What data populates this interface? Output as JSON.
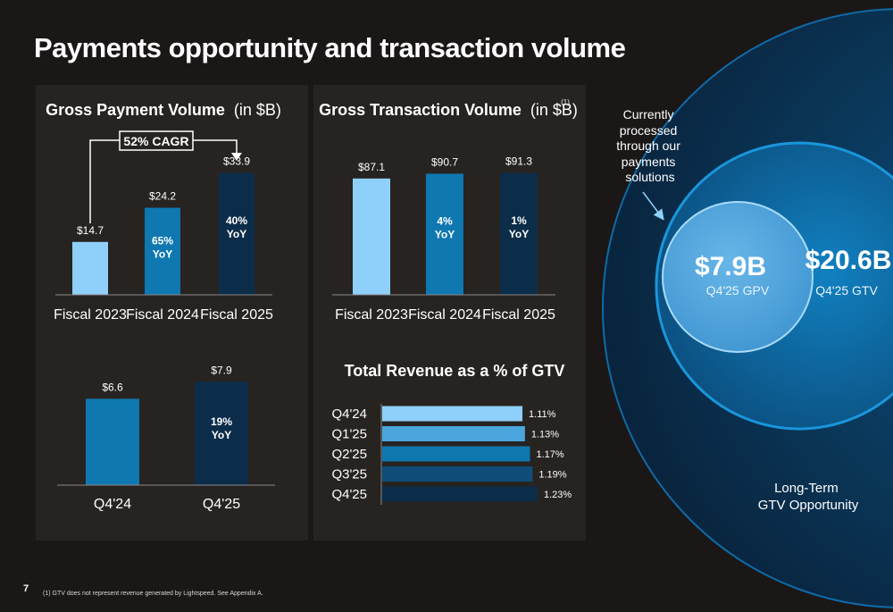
{
  "title": "Payments opportunity and transaction volume",
  "page_number": "7",
  "footnote": "(1) GTV does not represent revenue generated by Lightspeed. See Appendix A.",
  "colors": {
    "background": "#1a1716",
    "panel": "#272321",
    "light_blue": "#8fd0fa",
    "mid_blue": "#0f78b0",
    "dark_navy": "#0c2d4a"
  },
  "chart_data": [
    {
      "type": "bar",
      "title": "Gross Payment Volume",
      "title_unit": "(in $B)",
      "categories": [
        "Fiscal 2023",
        "Fiscal 2024",
        "Fiscal 2025"
      ],
      "values": [
        14.7,
        24.2,
        33.9
      ],
      "value_labels": [
        "$14.7",
        "$24.2",
        "$33.9"
      ],
      "growth_labels": [
        [
          "",
          ""
        ],
        [
          "65%",
          "YoY"
        ],
        [
          "40%",
          "YoY"
        ]
      ],
      "bar_colors": [
        "#8fd0fa",
        "#0f78b0",
        "#0c2d4a"
      ],
      "cagr_label": "52% CAGR",
      "ylim": [
        0,
        36
      ]
    },
    {
      "type": "bar",
      "title": "Gross Transaction Volume",
      "title_unit": "(in $B)",
      "title_note": "(1)",
      "categories": [
        "Fiscal 2023",
        "Fiscal 2024",
        "Fiscal 2025"
      ],
      "values": [
        87.1,
        90.7,
        91.3
      ],
      "value_labels": [
        "$87.1",
        "$90.7",
        "$91.3"
      ],
      "growth_labels": [
        [
          "",
          ""
        ],
        [
          "4%",
          "YoY"
        ],
        [
          "1%",
          "YoY"
        ]
      ],
      "bar_colors": [
        "#8fd0fa",
        "#0f78b0",
        "#0c2d4a"
      ],
      "ylim": [
        0,
        97
      ]
    },
    {
      "type": "bar",
      "title": "",
      "categories": [
        "Q4'24",
        "Q4'25"
      ],
      "values": [
        6.6,
        7.9
      ],
      "value_labels": [
        "$6.6",
        "$7.9"
      ],
      "growth_labels": [
        [
          "",
          ""
        ],
        [
          "19%",
          "YoY"
        ]
      ],
      "bar_colors": [
        "#0f78b0",
        "#0c2d4a"
      ],
      "ylim": [
        0,
        8.4
      ]
    },
    {
      "type": "bar",
      "orientation": "horizontal",
      "title": "Total Revenue as a % of GTV",
      "categories": [
        "Q4'24",
        "Q1'25",
        "Q2'25",
        "Q3'25",
        "Q4'25"
      ],
      "values": [
        1.11,
        1.13,
        1.17,
        1.19,
        1.23
      ],
      "value_labels": [
        "1.11%",
        "1.13%",
        "1.17%",
        "1.19%",
        "1.23%"
      ],
      "bar_colors": [
        "#8fd0fa",
        "#4aa6dc",
        "#0f78b0",
        "#0e4e78",
        "#0c2d4a"
      ]
    }
  ],
  "opportunity": {
    "note_lines": [
      "Currently",
      "processed",
      "through our",
      "payments",
      "solutions"
    ],
    "gpv_value": "$7.9B",
    "gpv_label": "Q4'25 GPV",
    "gtv_value": "$20.6B",
    "gtv_label": "Q4'25 GTV",
    "long_term_lines": [
      "Long-Term",
      "GTV Opportunity"
    ]
  }
}
